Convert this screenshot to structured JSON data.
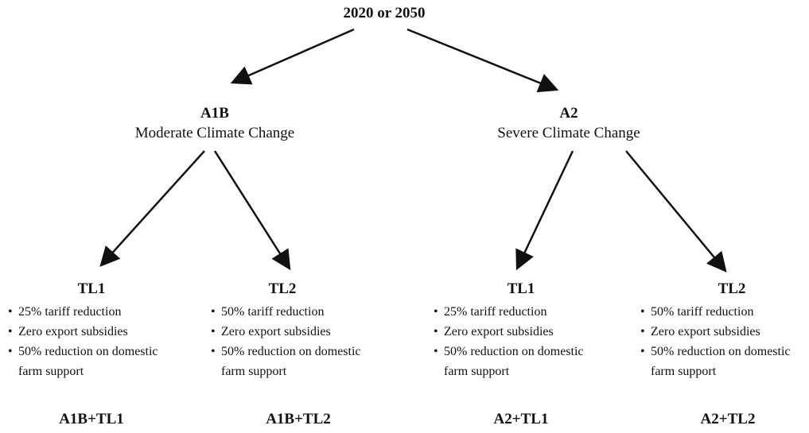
{
  "root": {
    "label": "2020 or 2050"
  },
  "scenarios": [
    {
      "code": "A1B",
      "label": "Moderate Climate Change",
      "options": [
        {
          "title": "TL1",
          "bullets": [
            "25% tariff reduction",
            "Zero export subsidies",
            "50% reduction on domestic farm support"
          ],
          "result": "A1B+TL1"
        },
        {
          "title": "TL2",
          "bullets": [
            "50% tariff reduction",
            "Zero export subsidies",
            "50% reduction on domestic farm support"
          ],
          "result": "A1B+TL2"
        }
      ]
    },
    {
      "code": "A2",
      "label": "Severe Climate Change",
      "options": [
        {
          "title": "TL1",
          "bullets": [
            "25% tariff reduction",
            "Zero export subsidies",
            "50% reduction on domestic farm support"
          ],
          "result": "A2+TL1"
        },
        {
          "title": "TL2",
          "bullets": [
            "50% tariff reduction",
            "Zero export subsidies",
            "50% reduction on domestic farm support"
          ],
          "result": "A2+TL2"
        }
      ]
    }
  ]
}
